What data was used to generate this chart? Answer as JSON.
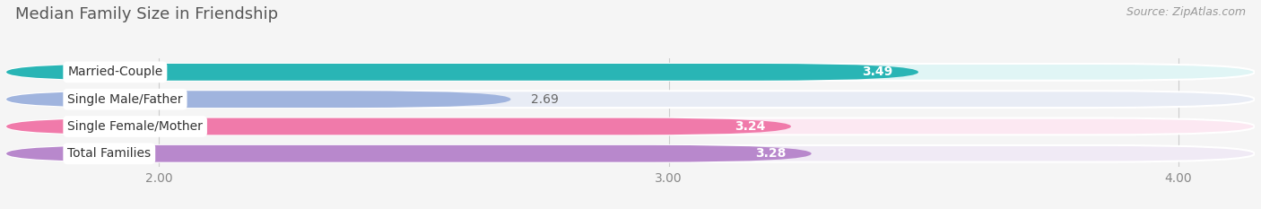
{
  "title": "Median Family Size in Friendship",
  "source": "Source: ZipAtlas.com",
  "categories": [
    "Married-Couple",
    "Single Male/Father",
    "Single Female/Mother",
    "Total Families"
  ],
  "values": [
    3.49,
    2.69,
    3.24,
    3.28
  ],
  "bar_colors": [
    "#29b5b5",
    "#a0b4de",
    "#f07aaa",
    "#b888cc"
  ],
  "bar_bg_color": "#e8e8ee",
  "xmin": 1.7,
  "xmax": 4.15,
  "xticks": [
    2.0,
    3.0,
    4.0
  ],
  "xtick_labels": [
    "2.00",
    "3.00",
    "4.00"
  ],
  "label_fontsize": 10,
  "value_fontsize": 10,
  "title_fontsize": 13,
  "source_fontsize": 9,
  "background_color": "#f5f5f5",
  "bar_bg_individual_colors": [
    "#e0f5f5",
    "#e8ecf5",
    "#fce8f2",
    "#f0eaf5"
  ]
}
